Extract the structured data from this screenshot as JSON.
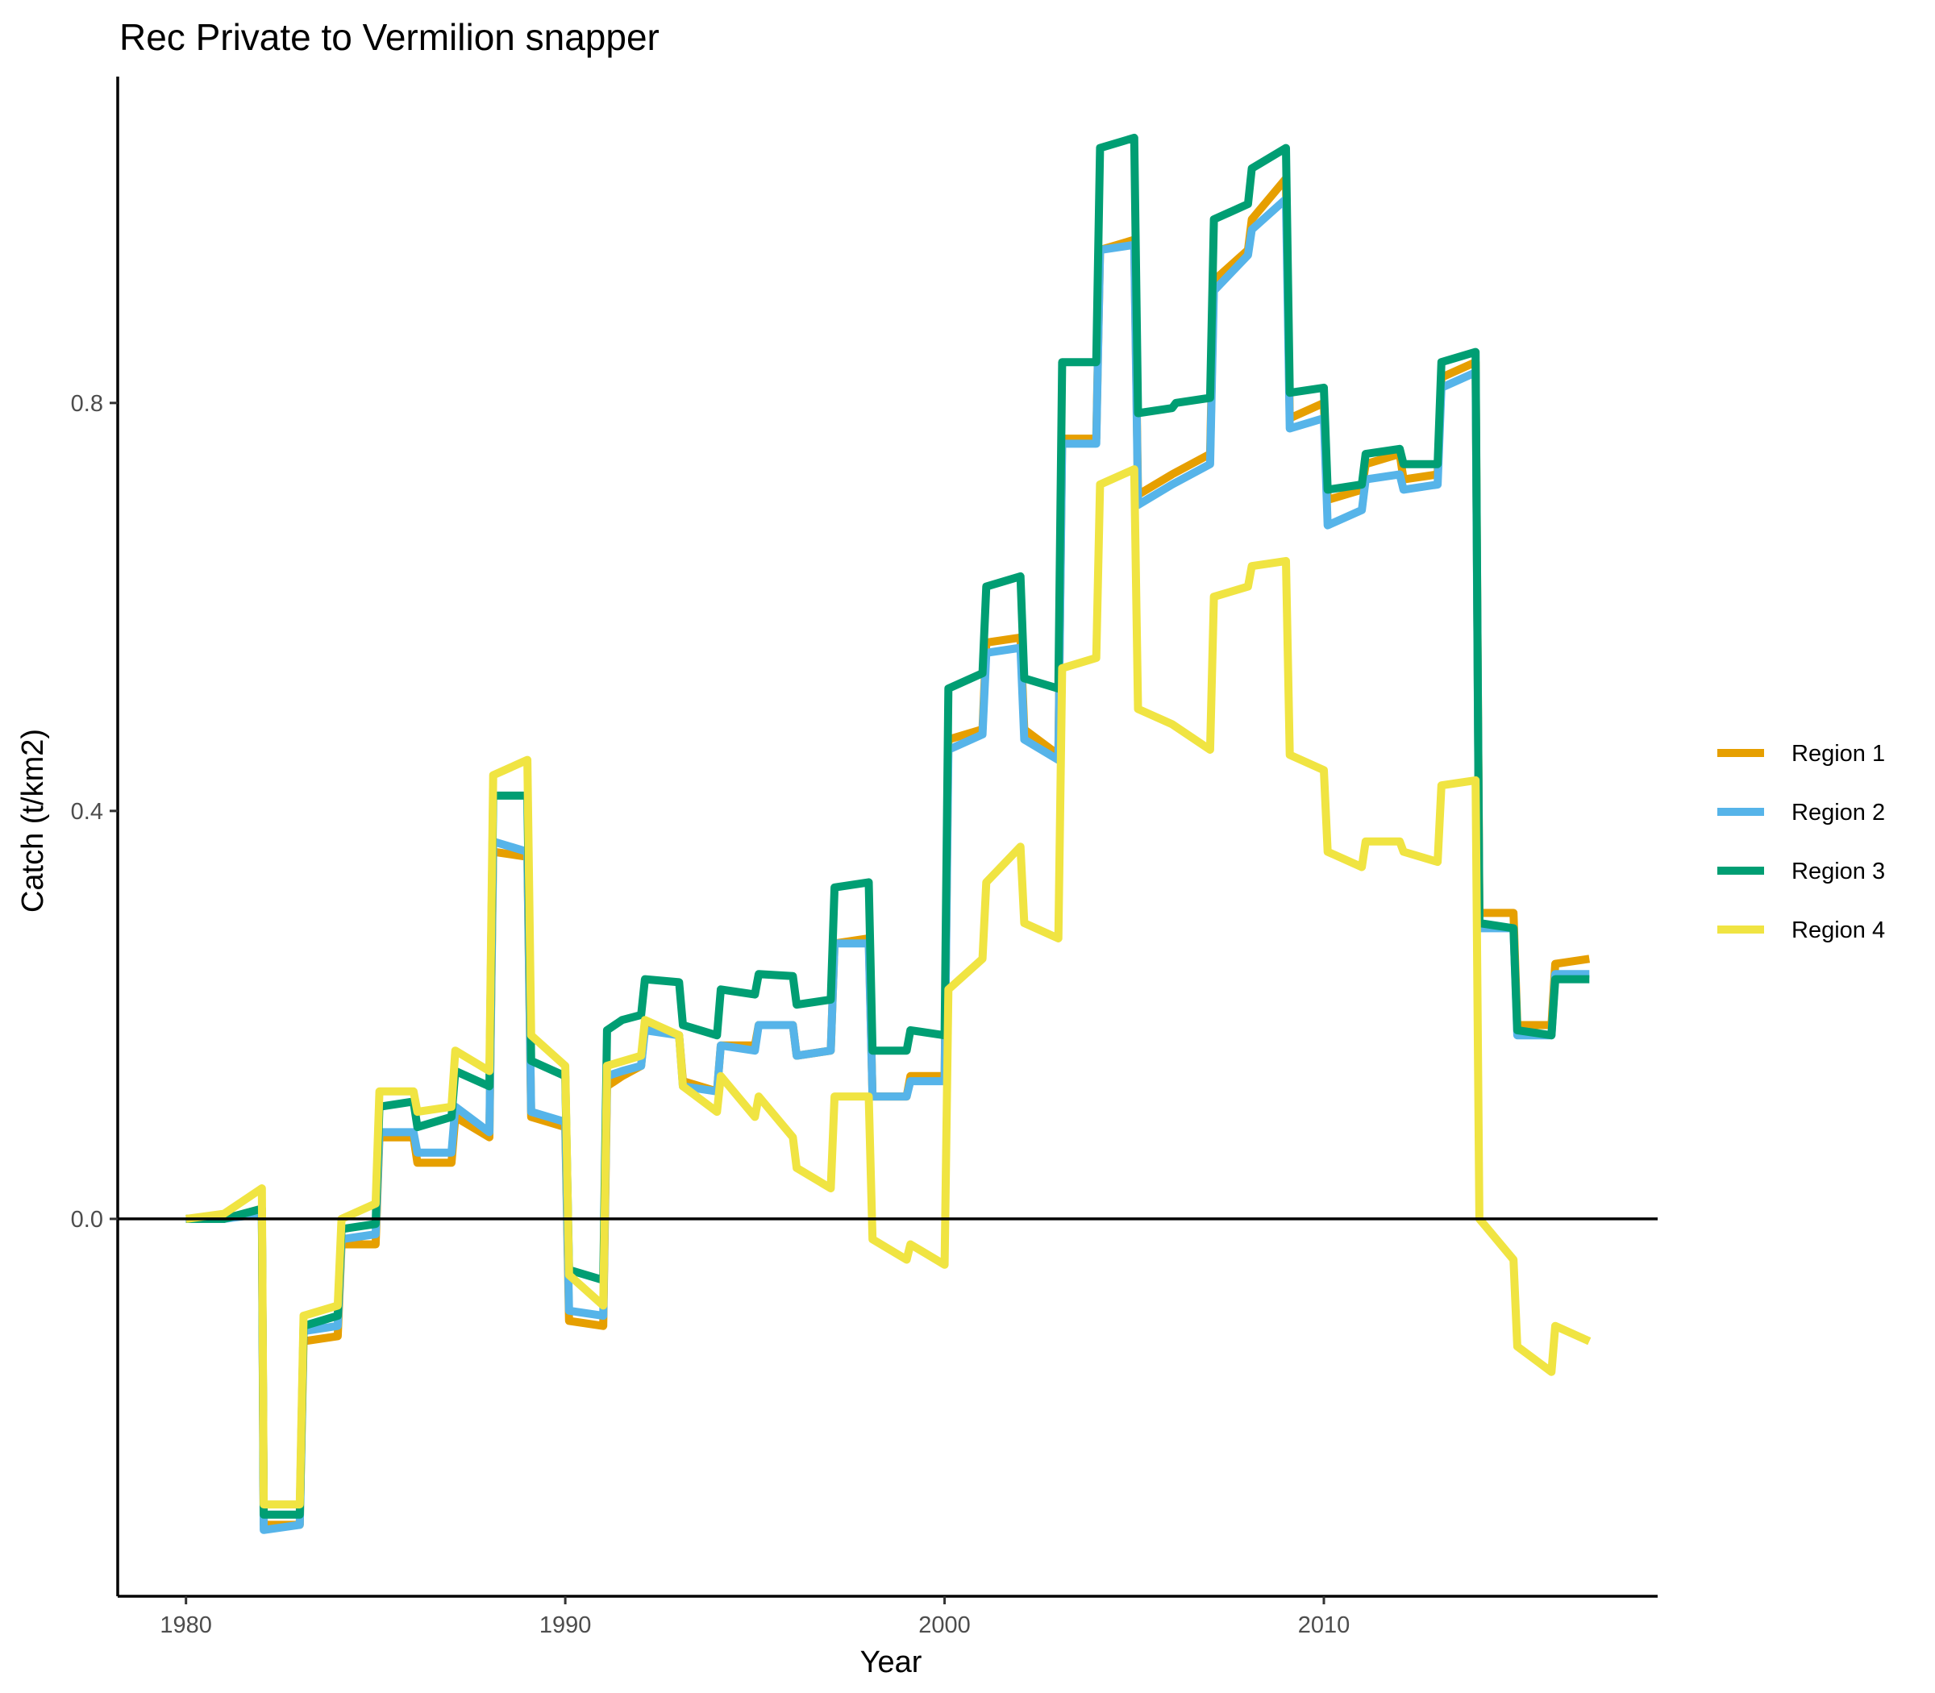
{
  "chart_data": {
    "type": "line",
    "title": "Rec Private to Vermilion snapper",
    "xlabel": "Year",
    "ylabel": "Catch (t/km2)",
    "xlim": [
      1978.2,
      2018.8
    ],
    "ylim": [
      -0.37,
      1.12
    ],
    "xticks": [
      1980,
      1990,
      2000,
      2010
    ],
    "yticks": [
      0.0,
      0.4,
      0.8
    ],
    "x_tick_labels": [
      "1980",
      "1990",
      "2000",
      "2010"
    ],
    "y_tick_labels": [
      "0.0",
      "0.4",
      "0.8"
    ],
    "hline": 0,
    "grid": false,
    "legend_position": "right",
    "series": [
      {
        "name": "Region 1",
        "color": "#E69F00",
        "points": [
          [
            1980,
            0
          ],
          [
            1981,
            0
          ],
          [
            1982,
            0.01
          ],
          [
            1982.05,
            -0.3
          ],
          [
            1983,
            -0.3
          ],
          [
            1983.1,
            -0.12
          ],
          [
            1984,
            -0.115
          ],
          [
            1984.1,
            -0.025
          ],
          [
            1985,
            -0.025
          ],
          [
            1985.1,
            0.08
          ],
          [
            1986,
            0.08
          ],
          [
            1986.1,
            0.055
          ],
          [
            1987,
            0.055
          ],
          [
            1987.1,
            0.1
          ],
          [
            1988,
            0.08
          ],
          [
            1988.1,
            0.36
          ],
          [
            1989,
            0.355
          ],
          [
            1989.1,
            0.1
          ],
          [
            1990,
            0.09
          ],
          [
            1990.1,
            -0.1
          ],
          [
            1991,
            -0.105
          ],
          [
            1991.1,
            0.13
          ],
          [
            1991.5,
            0.14
          ],
          [
            1992,
            0.15
          ],
          [
            1992.1,
            0.19
          ],
          [
            1993,
            0.18
          ],
          [
            1993.1,
            0.135
          ],
          [
            1994,
            0.125
          ],
          [
            1994.1,
            0.17
          ],
          [
            1995,
            0.17
          ],
          [
            1995.1,
            0.19
          ],
          [
            1996,
            0.19
          ],
          [
            1996.1,
            0.16
          ],
          [
            1997,
            0.165
          ],
          [
            1997.1,
            0.27
          ],
          [
            1998,
            0.275
          ],
          [
            1998.1,
            0.12
          ],
          [
            1999,
            0.12
          ],
          [
            1999.1,
            0.14
          ],
          [
            2000,
            0.14
          ],
          [
            2000.1,
            0.47
          ],
          [
            2001,
            0.48
          ],
          [
            2001.1,
            0.565
          ],
          [
            2002,
            0.57
          ],
          [
            2002.1,
            0.48
          ],
          [
            2003,
            0.455
          ],
          [
            2003.1,
            0.765
          ],
          [
            2004,
            0.765
          ],
          [
            2004.1,
            0.95
          ],
          [
            2005,
            0.96
          ],
          [
            2005.1,
            0.71
          ],
          [
            2006,
            0.73
          ],
          [
            2007,
            0.75
          ],
          [
            2007.1,
            0.92
          ],
          [
            2008,
            0.95
          ],
          [
            2008.1,
            0.98
          ],
          [
            2009,
            1.02
          ],
          [
            2009.1,
            0.785
          ],
          [
            2010,
            0.8
          ],
          [
            2010.1,
            0.705
          ],
          [
            2011,
            0.715
          ],
          [
            2011.1,
            0.74
          ],
          [
            2012,
            0.75
          ],
          [
            2012.1,
            0.725
          ],
          [
            2013,
            0.73
          ],
          [
            2013.1,
            0.825
          ],
          [
            2014,
            0.84
          ],
          [
            2014.1,
            0.3
          ],
          [
            2015,
            0.3
          ],
          [
            2015.1,
            0.19
          ],
          [
            2016,
            0.19
          ],
          [
            2016.1,
            0.25
          ],
          [
            2017,
            0.255
          ]
        ]
      },
      {
        "name": "Region 2",
        "color": "#56B4E9",
        "points": [
          [
            1980,
            0
          ],
          [
            1981,
            0
          ],
          [
            1982,
            0.005
          ],
          [
            1982.05,
            -0.305
          ],
          [
            1983,
            -0.3
          ],
          [
            1983.1,
            -0.11
          ],
          [
            1984,
            -0.105
          ],
          [
            1984.1,
            -0.02
          ],
          [
            1985,
            -0.015
          ],
          [
            1985.1,
            0.085
          ],
          [
            1986,
            0.085
          ],
          [
            1986.1,
            0.065
          ],
          [
            1987,
            0.065
          ],
          [
            1987.1,
            0.11
          ],
          [
            1988,
            0.085
          ],
          [
            1988.1,
            0.37
          ],
          [
            1989,
            0.36
          ],
          [
            1989.1,
            0.105
          ],
          [
            1990,
            0.095
          ],
          [
            1990.1,
            -0.09
          ],
          [
            1991,
            -0.095
          ],
          [
            1991.1,
            0.14
          ],
          [
            1991.5,
            0.145
          ],
          [
            1992,
            0.15
          ],
          [
            1992.1,
            0.185
          ],
          [
            1993,
            0.18
          ],
          [
            1993.1,
            0.13
          ],
          [
            1994,
            0.125
          ],
          [
            1994.1,
            0.17
          ],
          [
            1995,
            0.165
          ],
          [
            1995.1,
            0.19
          ],
          [
            1996,
            0.19
          ],
          [
            1996.1,
            0.16
          ],
          [
            1997,
            0.165
          ],
          [
            1997.1,
            0.27
          ],
          [
            1998,
            0.27
          ],
          [
            1998.1,
            0.12
          ],
          [
            1999,
            0.12
          ],
          [
            1999.1,
            0.135
          ],
          [
            2000,
            0.135
          ],
          [
            2000.1,
            0.46
          ],
          [
            2001,
            0.475
          ],
          [
            2001.1,
            0.555
          ],
          [
            2002,
            0.56
          ],
          [
            2002.1,
            0.47
          ],
          [
            2003,
            0.45
          ],
          [
            2003.1,
            0.76
          ],
          [
            2004,
            0.76
          ],
          [
            2004.1,
            0.95
          ],
          [
            2005,
            0.955
          ],
          [
            2005.1,
            0.7
          ],
          [
            2006,
            0.72
          ],
          [
            2007,
            0.74
          ],
          [
            2007.1,
            0.91
          ],
          [
            2008,
            0.945
          ],
          [
            2008.1,
            0.97
          ],
          [
            2009,
            1.0
          ],
          [
            2009.1,
            0.775
          ],
          [
            2010,
            0.785
          ],
          [
            2010.1,
            0.68
          ],
          [
            2011,
            0.695
          ],
          [
            2011.1,
            0.725
          ],
          [
            2012,
            0.73
          ],
          [
            2012.1,
            0.715
          ],
          [
            2013,
            0.72
          ],
          [
            2013.1,
            0.815
          ],
          [
            2014,
            0.83
          ],
          [
            2014.1,
            0.285
          ],
          [
            2015,
            0.285
          ],
          [
            2015.1,
            0.18
          ],
          [
            2016,
            0.18
          ],
          [
            2016.1,
            0.24
          ],
          [
            2017,
            0.24
          ]
        ]
      },
      {
        "name": "Region 3",
        "color": "#009E73",
        "points": [
          [
            1980,
            0
          ],
          [
            1981,
            0
          ],
          [
            1982,
            0.01
          ],
          [
            1982.05,
            -0.29
          ],
          [
            1983,
            -0.29
          ],
          [
            1983.1,
            -0.105
          ],
          [
            1984,
            -0.095
          ],
          [
            1984.1,
            -0.01
          ],
          [
            1985,
            -0.005
          ],
          [
            1985.1,
            0.11
          ],
          [
            1986,
            0.115
          ],
          [
            1986.1,
            0.09
          ],
          [
            1987,
            0.1
          ],
          [
            1987.1,
            0.145
          ],
          [
            1988,
            0.13
          ],
          [
            1988.1,
            0.415
          ],
          [
            1989,
            0.415
          ],
          [
            1989.1,
            0.155
          ],
          [
            1990,
            0.14
          ],
          [
            1990.1,
            -0.05
          ],
          [
            1991,
            -0.06
          ],
          [
            1991.1,
            0.185
          ],
          [
            1991.5,
            0.195
          ],
          [
            1992,
            0.2
          ],
          [
            1992.1,
            0.235
          ],
          [
            1993,
            0.232
          ],
          [
            1993.1,
            0.19
          ],
          [
            1994,
            0.18
          ],
          [
            1994.1,
            0.225
          ],
          [
            1995,
            0.22
          ],
          [
            1995.1,
            0.24
          ],
          [
            1996,
            0.238
          ],
          [
            1996.1,
            0.21
          ],
          [
            1997,
            0.215
          ],
          [
            1997.1,
            0.325
          ],
          [
            1998,
            0.33
          ],
          [
            1998.1,
            0.165
          ],
          [
            1999,
            0.165
          ],
          [
            1999.1,
            0.185
          ],
          [
            2000,
            0.18
          ],
          [
            2000.1,
            0.52
          ],
          [
            2001,
            0.535
          ],
          [
            2001.1,
            0.62
          ],
          [
            2002,
            0.63
          ],
          [
            2002.1,
            0.53
          ],
          [
            2003,
            0.52
          ],
          [
            2003.1,
            0.84
          ],
          [
            2004,
            0.84
          ],
          [
            2004.1,
            1.05
          ],
          [
            2005,
            1.06
          ],
          [
            2005.1,
            0.79
          ],
          [
            2006,
            0.795
          ],
          [
            2006.1,
            0.8
          ],
          [
            2007,
            0.805
          ],
          [
            2007.1,
            0.98
          ],
          [
            2008,
            0.995
          ],
          [
            2008.1,
            1.03
          ],
          [
            2009,
            1.05
          ],
          [
            2009.1,
            0.81
          ],
          [
            2010,
            0.815
          ],
          [
            2010.1,
            0.715
          ],
          [
            2011,
            0.72
          ],
          [
            2011.1,
            0.75
          ],
          [
            2012,
            0.755
          ],
          [
            2012.1,
            0.74
          ],
          [
            2013,
            0.74
          ],
          [
            2013.1,
            0.84
          ],
          [
            2014,
            0.85
          ],
          [
            2014.1,
            0.29
          ],
          [
            2015,
            0.285
          ],
          [
            2015.1,
            0.185
          ],
          [
            2016,
            0.18
          ],
          [
            2016.1,
            0.235
          ],
          [
            2017,
            0.235
          ]
        ]
      },
      {
        "name": "Region 4",
        "color": "#F0E442",
        "points": [
          [
            1980,
            0
          ],
          [
            1981,
            0.005
          ],
          [
            1982,
            0.03
          ],
          [
            1982.05,
            -0.28
          ],
          [
            1983,
            -0.28
          ],
          [
            1983.1,
            -0.095
          ],
          [
            1984,
            -0.085
          ],
          [
            1984.1,
            0
          ],
          [
            1985,
            0.015
          ],
          [
            1985.1,
            0.125
          ],
          [
            1986,
            0.125
          ],
          [
            1986.1,
            0.105
          ],
          [
            1987,
            0.11
          ],
          [
            1987.1,
            0.165
          ],
          [
            1988,
            0.145
          ],
          [
            1988.1,
            0.435
          ],
          [
            1989,
            0.45
          ],
          [
            1989.1,
            0.18
          ],
          [
            1990,
            0.15
          ],
          [
            1990.1,
            -0.055
          ],
          [
            1991,
            -0.085
          ],
          [
            1991.1,
            0.15
          ],
          [
            1992,
            0.16
          ],
          [
            1992.1,
            0.195
          ],
          [
            1993,
            0.18
          ],
          [
            1993.1,
            0.13
          ],
          [
            1994,
            0.105
          ],
          [
            1994.1,
            0.14
          ],
          [
            1995,
            0.1
          ],
          [
            1995.1,
            0.12
          ],
          [
            1996,
            0.08
          ],
          [
            1996.1,
            0.05
          ],
          [
            1997,
            0.03
          ],
          [
            1997.1,
            0.12
          ],
          [
            1998,
            0.12
          ],
          [
            1998.1,
            -0.02
          ],
          [
            1999,
            -0.04
          ],
          [
            1999.1,
            -0.025
          ],
          [
            2000,
            -0.045
          ],
          [
            2000.1,
            0.225
          ],
          [
            2001,
            0.255
          ],
          [
            2001.1,
            0.33
          ],
          [
            2002,
            0.365
          ],
          [
            2002.1,
            0.29
          ],
          [
            2003,
            0.275
          ],
          [
            2003.1,
            0.54
          ],
          [
            2004,
            0.55
          ],
          [
            2004.1,
            0.72
          ],
          [
            2005,
            0.735
          ],
          [
            2005.1,
            0.5
          ],
          [
            2006,
            0.485
          ],
          [
            2007,
            0.46
          ],
          [
            2007.1,
            0.61
          ],
          [
            2008,
            0.62
          ],
          [
            2008.1,
            0.64
          ],
          [
            2009,
            0.645
          ],
          [
            2009.1,
            0.455
          ],
          [
            2010,
            0.44
          ],
          [
            2010.1,
            0.36
          ],
          [
            2011,
            0.345
          ],
          [
            2011.1,
            0.37
          ],
          [
            2012,
            0.37
          ],
          [
            2012.1,
            0.36
          ],
          [
            2013,
            0.35
          ],
          [
            2013.1,
            0.425
          ],
          [
            2014,
            0.43
          ],
          [
            2014.1,
            0
          ],
          [
            2015,
            -0.04
          ],
          [
            2015.1,
            -0.125
          ],
          [
            2016,
            -0.15
          ],
          [
            2016.1,
            -0.105
          ],
          [
            2017,
            -0.12
          ]
        ]
      }
    ]
  }
}
